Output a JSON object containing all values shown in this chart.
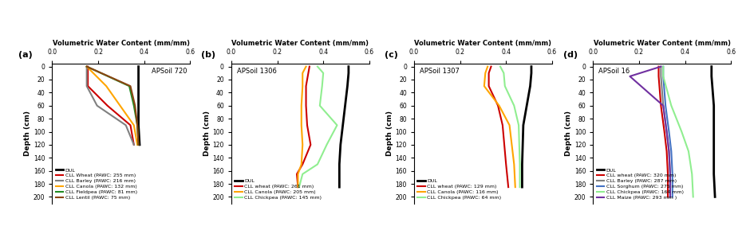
{
  "panel_labels": [
    "(a)",
    "(b)",
    "(c)",
    "(d)"
  ],
  "panel_titles": [
    "APSoil 720",
    "APSoil 1306",
    "APSoil 1307",
    "APSoil 16"
  ],
  "title_pos": [
    "right",
    "left",
    "left",
    "left"
  ],
  "xlabel": "Volumetric Water Content (mm/mm)",
  "ylabel": "Depth (cm)",
  "xlim": [
    0.0,
    0.6
  ],
  "xticks": [
    0.0,
    0.2,
    0.4,
    0.6
  ],
  "ylim": [
    210,
    -5
  ],
  "yticks": [
    0,
    20,
    40,
    60,
    80,
    100,
    120,
    140,
    160,
    180,
    200
  ],
  "panels": [
    {
      "series": [
        {
          "label": "DUL",
          "color": "#000000",
          "lw": 2.0,
          "x": [
            0.375,
            0.375,
            0.375,
            0.375,
            0.38
          ],
          "y": [
            0,
            15,
            60,
            90,
            120
          ]
        },
        {
          "label": "CLL Wheat (PAWC: 255 mm)",
          "color": "#cc0000",
          "lw": 1.5,
          "x": [
            0.155,
            0.155,
            0.24,
            0.34,
            0.355
          ],
          "y": [
            0,
            30,
            60,
            90,
            120
          ]
        },
        {
          "label": "CLL Barley (PAWC: 216 mm)",
          "color": "#808080",
          "lw": 1.5,
          "x": [
            0.15,
            0.15,
            0.195,
            0.32,
            0.355
          ],
          "y": [
            0,
            30,
            60,
            90,
            120
          ]
        },
        {
          "label": "CLL Canola (PAWC: 132 mm)",
          "color": "#ffa500",
          "lw": 1.5,
          "x": [
            0.15,
            0.235,
            0.295,
            0.355,
            0.37
          ],
          "y": [
            0,
            30,
            60,
            90,
            120
          ]
        },
        {
          "label": "CLL Fieldpea (PAWC: 81 mm)",
          "color": "#228B22",
          "lw": 1.5,
          "x": [
            0.15,
            0.335,
            0.355,
            0.37,
            0.375
          ],
          "y": [
            0,
            30,
            60,
            90,
            120
          ]
        },
        {
          "label": "CLL Lentil (PAWC: 75 mm)",
          "color": "#8B4513",
          "lw": 1.5,
          "x": [
            0.15,
            0.34,
            0.36,
            0.37,
            0.375
          ],
          "y": [
            0,
            30,
            60,
            90,
            120
          ]
        }
      ]
    },
    {
      "series": [
        {
          "label": "DUL",
          "color": "#000000",
          "lw": 2.0,
          "x": [
            0.51,
            0.51,
            0.505,
            0.495,
            0.485,
            0.475,
            0.47,
            0.47,
            0.47
          ],
          "y": [
            0,
            10,
            30,
            60,
            90,
            120,
            150,
            165,
            185
          ]
        },
        {
          "label": "CLL wheat (PAWC: 261 mm)",
          "color": "#cc0000",
          "lw": 1.5,
          "x": [
            0.34,
            0.335,
            0.325,
            0.325,
            0.33,
            0.345,
            0.31,
            0.285,
            0.29
          ],
          "y": [
            0,
            10,
            30,
            60,
            90,
            120,
            150,
            165,
            185
          ]
        },
        {
          "label": "CLL Canola (PAWC: 205 mm)",
          "color": "#ffa500",
          "lw": 1.5,
          "x": [
            0.325,
            0.31,
            0.31,
            0.305,
            0.305,
            0.31,
            0.305,
            0.29,
            0.29
          ],
          "y": [
            0,
            10,
            30,
            60,
            90,
            120,
            150,
            165,
            185
          ]
        },
        {
          "label": "CLL Chickpea (PAWC: 145 mm)",
          "color": "#90EE90",
          "lw": 1.5,
          "x": [
            0.375,
            0.4,
            0.395,
            0.385,
            0.46,
            0.415,
            0.375,
            0.31,
            0.295
          ],
          "y": [
            0,
            10,
            30,
            60,
            90,
            120,
            150,
            165,
            185
          ]
        }
      ]
    },
    {
      "series": [
        {
          "label": "DUL",
          "color": "#000000",
          "lw": 2.0,
          "x": [
            0.51,
            0.51,
            0.505,
            0.49,
            0.475,
            0.47,
            0.47
          ],
          "y": [
            0,
            10,
            30,
            60,
            90,
            150,
            185
          ]
        },
        {
          "label": "CLL wheat (PAWC: 129 mm)",
          "color": "#cc0000",
          "lw": 1.5,
          "x": [
            0.335,
            0.325,
            0.325,
            0.365,
            0.385,
            0.4,
            0.41
          ],
          "y": [
            0,
            10,
            30,
            60,
            90,
            150,
            185
          ]
        },
        {
          "label": "CLL Canola (PAWC: 116 mm)",
          "color": "#ffa500",
          "lw": 1.5,
          "x": [
            0.32,
            0.31,
            0.305,
            0.37,
            0.415,
            0.435,
            0.44
          ],
          "y": [
            0,
            10,
            30,
            60,
            90,
            150,
            185
          ]
        },
        {
          "label": "CLL Chickpea (PAWC: 64 mm)",
          "color": "#90EE90",
          "lw": 1.5,
          "x": [
            0.375,
            0.39,
            0.395,
            0.435,
            0.455,
            0.46,
            0.46
          ],
          "y": [
            0,
            10,
            30,
            60,
            90,
            150,
            185
          ]
        }
      ]
    },
    {
      "series": [
        {
          "label": "DUL",
          "color": "#000000",
          "lw": 2.0,
          "x": [
            0.515,
            0.515,
            0.525,
            0.525,
            0.525,
            0.525,
            0.53
          ],
          "y": [
            0,
            15,
            60,
            100,
            130,
            165,
            200
          ]
        },
        {
          "label": "CLL wheat (PAWC: 320 mm)",
          "color": "#cc0000",
          "lw": 1.5,
          "x": [
            0.285,
            0.285,
            0.295,
            0.31,
            0.32,
            0.325,
            0.325
          ],
          "y": [
            0,
            15,
            60,
            100,
            130,
            165,
            200
          ]
        },
        {
          "label": "CLL Barley (PAWC: 287 mm)",
          "color": "#808080",
          "lw": 1.5,
          "x": [
            0.295,
            0.295,
            0.305,
            0.32,
            0.33,
            0.335,
            0.335
          ],
          "y": [
            0,
            15,
            60,
            100,
            130,
            165,
            200
          ]
        },
        {
          "label": "CLL Sorghum (PAWC: 275 mm)",
          "color": "#4472c4",
          "lw": 1.5,
          "x": [
            0.305,
            0.305,
            0.315,
            0.33,
            0.34,
            0.345,
            0.345
          ],
          "y": [
            0,
            15,
            60,
            100,
            130,
            165,
            200
          ]
        },
        {
          "label": "CLL Chickpea (PAWC: 164 mm)",
          "color": "#90EE90",
          "lw": 1.5,
          "x": [
            0.305,
            0.305,
            0.34,
            0.385,
            0.415,
            0.43,
            0.435
          ],
          "y": [
            0,
            15,
            60,
            100,
            130,
            165,
            200
          ]
        },
        {
          "label": "CLL Maize (PAWC: 293 mm )",
          "color": "#7030a0",
          "lw": 1.5,
          "x": [
            0.295,
            0.16,
            0.305,
            0.32,
            0.33,
            0.335,
            0.335
          ],
          "y": [
            0,
            15,
            60,
            100,
            130,
            165,
            200
          ]
        }
      ]
    }
  ]
}
